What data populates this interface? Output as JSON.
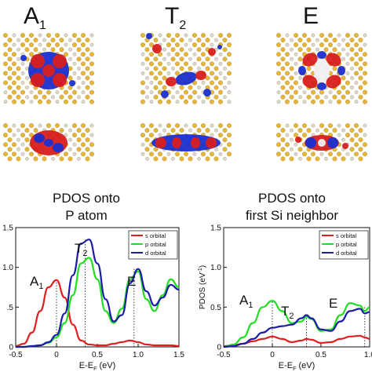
{
  "symmetry_labels": [
    {
      "main": "A",
      "sub": "1"
    },
    {
      "main": "T",
      "sub": "2"
    },
    {
      "main": "E",
      "sub": ""
    }
  ],
  "colors": {
    "s_orbital": "#e02020",
    "p_orbital": "#22dd22",
    "d_orbital": "#1c1ca8",
    "lobe_red": "#d81e1e",
    "lobe_blue": "#1a2fd0",
    "atom_gold": "#e5b63a",
    "atom_white": "#d8d8d8"
  },
  "left_panel": {
    "title_line1": "PDOS onto",
    "title_line2": "P atom",
    "xlabel": "E-E",
    "xlabel_sub": "F",
    "xlabel_unit": " (eV)",
    "legend": [
      "s orbital",
      "p orbital",
      "d orbital"
    ],
    "peak_labels": [
      {
        "main": "A",
        "sub": "1"
      },
      {
        "main": "T",
        "sub": "2"
      },
      {
        "main": "E",
        "sub": ""
      }
    ]
  },
  "right_panel": {
    "title_line1": "PDOS onto",
    "title_line2": "first Si neighbor",
    "ylabel": "PDOS (eV",
    "ylabel_sup": "-1",
    "ylabel_end": ")",
    "xlabel": "E-E",
    "xlabel_sub": "F",
    "xlabel_unit": " (eV)",
    "legend": [
      "s orbital",
      "p orbital",
      "d orbital"
    ],
    "peak_labels": [
      {
        "main": "A",
        "sub": "1"
      },
      {
        "main": "T",
        "sub": "2"
      },
      {
        "main": "E",
        "sub": ""
      }
    ]
  },
  "chart_data": [
    {
      "type": "line",
      "title": "PDOS onto P atom",
      "xlabel": "E-EF (eV)",
      "ylabel": "",
      "xlim": [
        -0.5,
        1.5
      ],
      "ylim": [
        0,
        1.5
      ],
      "x_ticks": [
        "-0.5",
        "0",
        "0.5",
        "1.0",
        "1.5"
      ],
      "y_ticks": [
        "1.5",
        "1.0",
        ".5",
        "0"
      ],
      "legend_position": "top-right",
      "series": [
        {
          "name": "s orbital",
          "x": [
            -0.5,
            -0.4,
            -0.3,
            -0.2,
            -0.1,
            0,
            0.1,
            0.2,
            0.3,
            0.4,
            0.5,
            0.6,
            0.7,
            0.8,
            0.9,
            1.0,
            1.1,
            1.2,
            1.3,
            1.4,
            1.5
          ],
          "values": [
            0.01,
            0.04,
            0.18,
            0.45,
            0.75,
            0.84,
            0.62,
            0.28,
            0.08,
            0.03,
            0.02,
            0.02,
            0.04,
            0.06,
            0.08,
            0.06,
            0.03,
            0.02,
            0.02,
            0.02,
            0.01
          ]
        },
        {
          "name": "p orbital",
          "x": [
            -0.5,
            -0.4,
            -0.3,
            -0.2,
            -0.1,
            0,
            0.1,
            0.2,
            0.3,
            0.4,
            0.5,
            0.6,
            0.7,
            0.8,
            0.9,
            1.0,
            1.1,
            1.2,
            1.3,
            1.4,
            1.5
          ],
          "values": [
            0.0,
            0.0,
            0.01,
            0.02,
            0.05,
            0.12,
            0.3,
            0.65,
            1.05,
            1.12,
            0.85,
            0.45,
            0.3,
            0.48,
            0.85,
            0.95,
            0.6,
            0.45,
            0.65,
            0.85,
            0.75
          ]
        },
        {
          "name": "d orbital",
          "x": [
            -0.5,
            -0.4,
            -0.3,
            -0.2,
            -0.1,
            0,
            0.1,
            0.2,
            0.3,
            0.4,
            0.5,
            0.6,
            0.7,
            0.8,
            0.9,
            1.0,
            1.1,
            1.2,
            1.3,
            1.4,
            1.5
          ],
          "values": [
            0.0,
            0.0,
            0.01,
            0.02,
            0.06,
            0.15,
            0.42,
            0.9,
            1.3,
            1.35,
            1.05,
            0.6,
            0.32,
            0.4,
            0.8,
            0.98,
            0.7,
            0.52,
            0.62,
            0.78,
            0.72
          ]
        }
      ],
      "peak_lines_x": [
        0.0,
        0.35,
        0.95
      ]
    },
    {
      "type": "line",
      "title": "PDOS onto first Si neighbor",
      "xlabel": "E-EF (eV)",
      "ylabel": "PDOS (eV-1)",
      "xlim": [
        -0.5,
        1.0
      ],
      "ylim": [
        0,
        1.5
      ],
      "x_ticks": [
        "-0.5",
        "0",
        "0.5",
        "1.0"
      ],
      "y_ticks": [
        "1.5",
        "1.0",
        "0.5",
        "0"
      ],
      "legend_position": "top-right",
      "series": [
        {
          "name": "s orbital",
          "x": [
            -0.5,
            -0.4,
            -0.3,
            -0.2,
            -0.1,
            0,
            0.1,
            0.2,
            0.3,
            0.35,
            0.4,
            0.5,
            0.6,
            0.7,
            0.8,
            0.9,
            0.95,
            1.0
          ],
          "values": [
            0.01,
            0.02,
            0.04,
            0.07,
            0.1,
            0.13,
            0.1,
            0.06,
            0.08,
            0.1,
            0.09,
            0.05,
            0.06,
            0.1,
            0.13,
            0.14,
            0.12,
            0.1
          ]
        },
        {
          "name": "p orbital",
          "x": [
            -0.5,
            -0.4,
            -0.3,
            -0.2,
            -0.1,
            0,
            0.1,
            0.2,
            0.3,
            0.35,
            0.4,
            0.5,
            0.6,
            0.7,
            0.8,
            0.9,
            0.95,
            1.0
          ],
          "values": [
            0.0,
            0.03,
            0.12,
            0.3,
            0.5,
            0.58,
            0.45,
            0.3,
            0.32,
            0.38,
            0.35,
            0.2,
            0.22,
            0.4,
            0.55,
            0.52,
            0.45,
            0.5
          ]
        },
        {
          "name": "d orbital",
          "x": [
            -0.5,
            -0.4,
            -0.3,
            -0.2,
            -0.1,
            0,
            0.1,
            0.2,
            0.3,
            0.35,
            0.4,
            0.5,
            0.6,
            0.7,
            0.8,
            0.9,
            0.95,
            1.0
          ],
          "values": [
            0.0,
            0.01,
            0.04,
            0.1,
            0.18,
            0.24,
            0.26,
            0.28,
            0.36,
            0.4,
            0.36,
            0.22,
            0.2,
            0.32,
            0.45,
            0.48,
            0.42,
            0.44
          ]
        }
      ],
      "peak_lines_x": [
        0.0,
        0.35,
        0.95
      ]
    }
  ]
}
